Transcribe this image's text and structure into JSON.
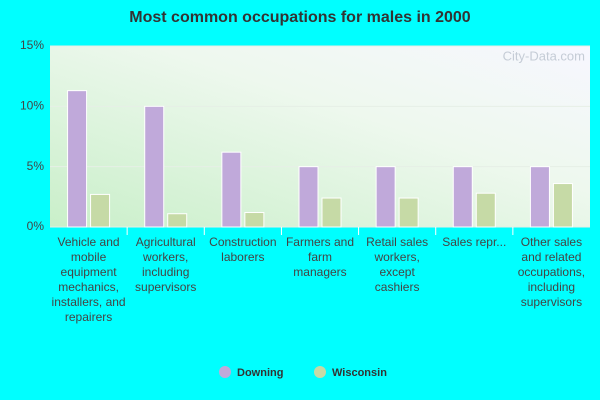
{
  "chart_data": {
    "type": "bar",
    "title": "Most common occupations for males in 2000",
    "watermark": "City-Data.com",
    "categories": [
      "Vehicle and mobile equipment mechanics, installers, and repairers",
      "Agricultural workers, including supervisors",
      "Construction laborers",
      "Farmers and farm managers",
      "Retail sales workers, except cashiers",
      "Sales repr...",
      "Other sales and related occupations, including supervisors"
    ],
    "series": [
      {
        "name": "Downing",
        "color": "#c0a9da",
        "values": [
          11.3,
          10.0,
          6.2,
          5.0,
          5.0,
          5.0,
          5.0
        ]
      },
      {
        "name": "Wisconsin",
        "color": "#c6daa6",
        "values": [
          2.7,
          1.1,
          1.2,
          2.4,
          2.4,
          2.8,
          3.6
        ]
      }
    ],
    "ylim": [
      0,
      15
    ],
    "yticks": [
      {
        "value": 0,
        "label": "0%"
      },
      {
        "value": 5,
        "label": "5%"
      },
      {
        "value": 10,
        "label": "10%"
      },
      {
        "value": 15,
        "label": "15%"
      }
    ],
    "grid": true
  }
}
